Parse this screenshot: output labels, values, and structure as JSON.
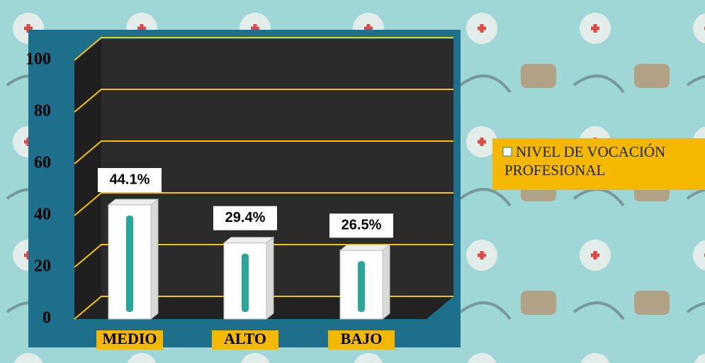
{
  "chart_data": {
    "type": "bar",
    "categories": [
      "MEDIO",
      "ALTO",
      "BAJO"
    ],
    "series": [
      {
        "name": "NIVEL DE VOCACIÓN PROFESIONAL",
        "color": "#ffffff",
        "values": [
          44.1,
          29.4,
          26.5
        ],
        "value_labels": [
          "44.1%",
          "29.4%",
          "26.5%"
        ]
      }
    ],
    "ylim": [
      0,
      100
    ],
    "yticks": [
      0,
      20,
      40,
      60,
      80,
      100
    ],
    "grid": true
  }
}
